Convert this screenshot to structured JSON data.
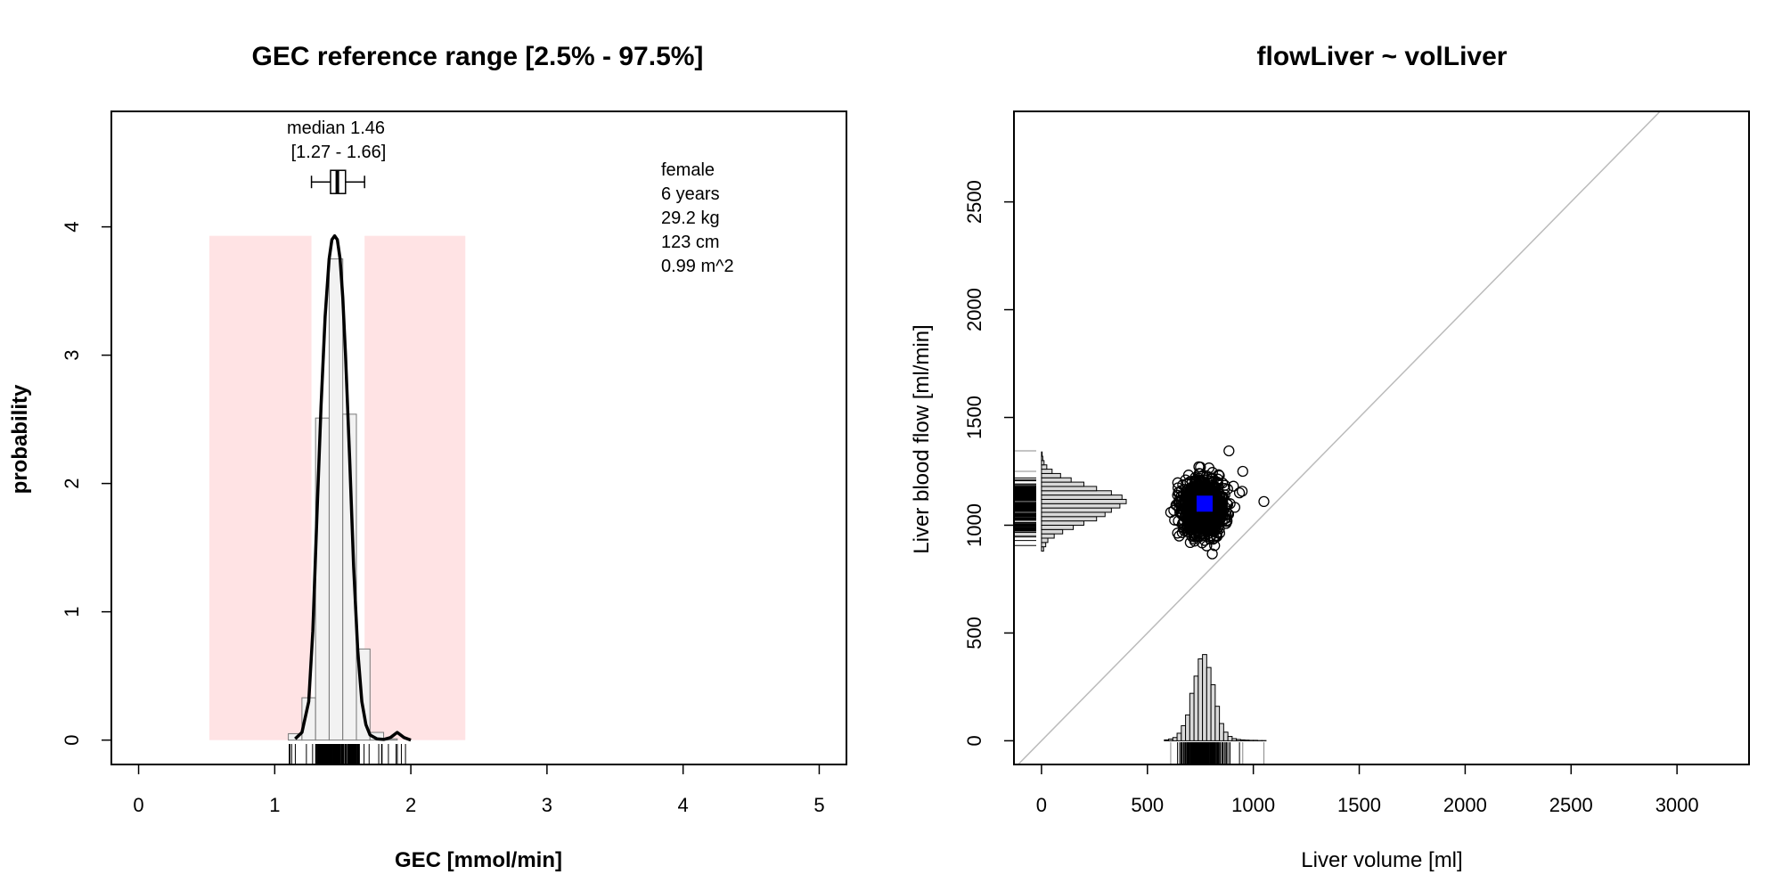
{
  "chart_data": [
    {
      "type": "histogram",
      "title": "GEC reference range [2.5% - 97.5%]",
      "xlabel": "GEC [mmol/min]",
      "ylabel": "probability",
      "xlim": [
        -0.2,
        5.2
      ],
      "ylim": [
        -0.19,
        4.9
      ],
      "x_ticks": [
        "0",
        "1",
        "2",
        "3",
        "4",
        "5"
      ],
      "y_ticks": [
        "0",
        "1",
        "2",
        "3",
        "4"
      ],
      "reference_bands": [
        {
          "x_from": 0.52,
          "x_to": 1.27,
          "y_to": 3.93
        },
        {
          "x_from": 1.66,
          "x_to": 2.4,
          "y_to": 3.93
        }
      ],
      "band_color": "#ffe3e4",
      "histogram": {
        "bin_width": 0.1,
        "bins_left": [
          1.1,
          1.2,
          1.3,
          1.4,
          1.5,
          1.6,
          1.7,
          1.8
        ],
        "density": [
          0.05,
          0.33,
          2.51,
          3.75,
          2.54,
          0.71,
          0.06,
          0.01
        ]
      },
      "density_curve": {
        "x": [
          1.15,
          1.2,
          1.25,
          1.28,
          1.31,
          1.34,
          1.37,
          1.4,
          1.42,
          1.44,
          1.46,
          1.48,
          1.5,
          1.52,
          1.55,
          1.58,
          1.61,
          1.64,
          1.67,
          1.7,
          1.75,
          1.8,
          1.85,
          1.9,
          1.95,
          2.0
        ],
        "y": [
          0.01,
          0.06,
          0.3,
          0.85,
          1.75,
          2.6,
          3.3,
          3.75,
          3.9,
          3.93,
          3.9,
          3.75,
          3.45,
          3.0,
          2.2,
          1.35,
          0.7,
          0.3,
          0.12,
          0.04,
          0.01,
          0.005,
          0.02,
          0.06,
          0.02,
          0.0
        ]
      },
      "boxplot": {
        "min": 1.27,
        "q1": 1.41,
        "median": 1.46,
        "q3": 1.52,
        "max": 1.66,
        "y": 4.35
      },
      "rug": {
        "x_from": 1.1,
        "x_to": 1.97,
        "dense_from": 1.3,
        "dense_to": 1.62
      },
      "annotations": {
        "median_line1": "median 1.46",
        "median_line2": "[1.27 - 1.66]",
        "info": [
          "female",
          "6 years",
          "29.2 kg",
          "123 cm",
          "0.99 m^2"
        ]
      },
      "line_color": "#000000",
      "bar_fill": "#f2f2f2",
      "bar_stroke": "#777777"
    },
    {
      "type": "scatter",
      "title": "flowLiver ~ volLiver",
      "xlabel": "Liver volume [ml]",
      "ylabel": "Liver blood flow [ml/min]",
      "xlim": [
        -130,
        3340
      ],
      "ylim": [
        -110,
        2920
      ],
      "x_ticks": [
        "0",
        "500",
        "1000",
        "1500",
        "2000",
        "2500",
        "3000"
      ],
      "y_ticks": [
        "0",
        "500",
        "1000",
        "1500",
        "2000",
        "2500"
      ],
      "identity_line": true,
      "identity_line_color": "#bbbbbb",
      "cluster": {
        "center_x": 760,
        "center_y": 1080,
        "sd_x": 50,
        "sd_y": 65,
        "n": 1000
      },
      "outliers": [
        {
          "x": 1050,
          "y": 1110
        },
        {
          "x": 885,
          "y": 1345
        },
        {
          "x": 950,
          "y": 1250
        },
        {
          "x": 610,
          "y": 1060
        },
        {
          "x": 650,
          "y": 950
        }
      ],
      "highlight_point": {
        "x": 770,
        "y": 1100,
        "color": "#0000ff"
      },
      "x_marginal_hist": {
        "bins_left": [
          580,
          600,
          620,
          640,
          660,
          680,
          700,
          720,
          740,
          760,
          780,
          800,
          820,
          840,
          860,
          880,
          900,
          920,
          940,
          960,
          980,
          1000,
          1020,
          1040
        ],
        "heights": [
          4,
          8,
          15,
          35,
          70,
          120,
          220,
          300,
          380,
          400,
          340,
          260,
          160,
          80,
          40,
          20,
          10,
          6,
          4,
          3,
          2,
          2,
          1,
          1
        ]
      },
      "y_marginal_hist": {
        "bins_bottom": [
          880,
          900,
          920,
          940,
          960,
          980,
          1000,
          1020,
          1040,
          1060,
          1080,
          1100,
          1120,
          1140,
          1160,
          1180,
          1200,
          1220,
          1240,
          1260,
          1280,
          1300,
          1320
        ],
        "widths": [
          10,
          20,
          30,
          60,
          100,
          150,
          200,
          260,
          300,
          330,
          370,
          400,
          380,
          330,
          260,
          200,
          140,
          90,
          50,
          25,
          12,
          6,
          3
        ]
      },
      "point_color": "#000000",
      "bar_fill": "#d9d9d9"
    }
  ]
}
